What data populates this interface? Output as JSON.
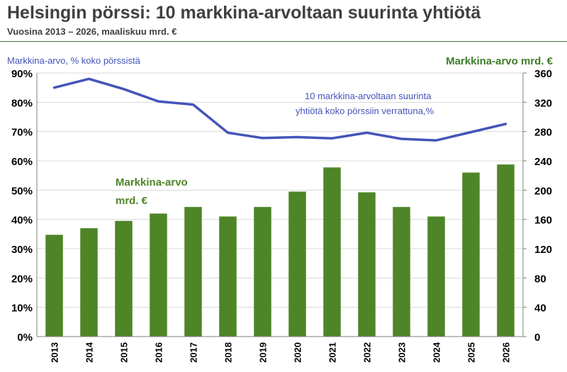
{
  "header": {
    "title": "Helsingin pörssi: 10 markkina-arvoltaan suurinta yhtiötä",
    "subtitle": "Vuosina 2013 – 2026, maaliskuu mrd. €"
  },
  "chart_data": {
    "type": "bar",
    "categories": [
      "2013",
      "2014",
      "2015",
      "2016",
      "2017",
      "2018",
      "2019",
      "2020",
      "2021",
      "2022",
      "2023",
      "2024",
      "2025",
      "2026"
    ],
    "series": [
      {
        "name": "",
        "type": "bar",
        "axis": "right",
        "values": [
          139,
          148,
          158,
          168,
          177,
          164,
          177,
          198,
          231,
          197,
          177,
          164,
          224,
          235
        ],
        "color": "#4e8526"
      },
      {
        "name": "",
        "type": "line",
        "axis": "left",
        "values": [
          85,
          88,
          84.5,
          80.3,
          79.2,
          69.6,
          67.8,
          68.1,
          67.7,
          69.6,
          67.5,
          67,
          69.8,
          72.6
        ],
        "color": "#4454b9"
      }
    ],
    "y_left": {
      "label": "Markkina-arvo, % koko pörssistä",
      "lim": [
        0,
        90
      ],
      "ticks": [
        0,
        10,
        20,
        30,
        40,
        50,
        60,
        70,
        80,
        90
      ],
      "ticklabels": [
        "0%",
        "10%",
        "20%",
        "30%",
        "40%",
        "50%",
        "60%",
        "70%",
        "80%",
        "90%"
      ]
    },
    "y_right": {
      "label": "Markkina-arvo mrd. €",
      "lim": [
        0,
        360
      ],
      "ticks": [
        0,
        40,
        80,
        120,
        160,
        200,
        240,
        280,
        320,
        360
      ]
    },
    "annotations": {
      "line": [
        "10 markkina-arvoltaan suurinta",
        "yhtiötä koko pörssiin verrattuna,%"
      ],
      "bars": [
        "Markkina-arvo",
        "mrd. €"
      ]
    },
    "grid": true,
    "colors": {
      "bar": "#4e8526",
      "line": "#4454b9",
      "left_axis_label": "#4454b9",
      "right_axis_label": "#3f7d2a",
      "bars_annotation": "#4e8526",
      "line_annotation": "#4454b9",
      "grid": "#d9d9d9"
    }
  }
}
